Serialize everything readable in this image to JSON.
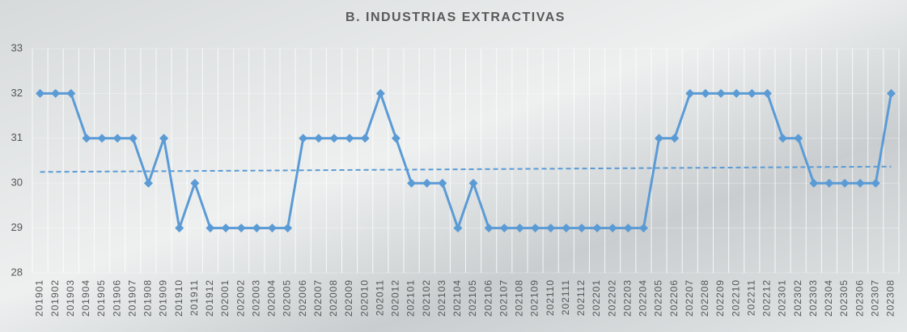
{
  "chart_data": {
    "type": "line",
    "title": "B. INDUSTRIAS EXTRACTIVAS",
    "categories": [
      "201901",
      "201902",
      "201903",
      "201904",
      "201905",
      "201906",
      "201907",
      "201908",
      "201909",
      "201910",
      "201911",
      "201912",
      "202001",
      "202002",
      "202003",
      "202004",
      "202005",
      "202006",
      "202007",
      "202008",
      "202009",
      "202010",
      "202011",
      "202012",
      "202101",
      "202102",
      "202103",
      "202104",
      "202105",
      "202106",
      "202107",
      "202108",
      "202109",
      "202110",
      "202111",
      "202112",
      "202201",
      "202202",
      "202203",
      "202204",
      "202205",
      "202206",
      "202207",
      "202208",
      "202209",
      "202210",
      "202211",
      "202212",
      "202301",
      "202302",
      "202303",
      "202304",
      "202305",
      "202306",
      "202307",
      "202308"
    ],
    "values": [
      32,
      32,
      32,
      31,
      31,
      31,
      31,
      30,
      31,
      29,
      30,
      29,
      29,
      29,
      29,
      29,
      29,
      31,
      31,
      31,
      31,
      31,
      32,
      31,
      30,
      30,
      30,
      29,
      30,
      29,
      29,
      29,
      29,
      29,
      29,
      29,
      29,
      29,
      29,
      29,
      31,
      31,
      32,
      32,
      32,
      32,
      32,
      32,
      31,
      31,
      30,
      30,
      30,
      30,
      30,
      32
    ],
    "color": "#5b9bd5",
    "trendline": [
      30.25,
      30.37
    ],
    "ylim": [
      28,
      33
    ],
    "yticks": [
      28,
      29,
      30,
      31,
      32,
      33
    ],
    "grid": true
  }
}
